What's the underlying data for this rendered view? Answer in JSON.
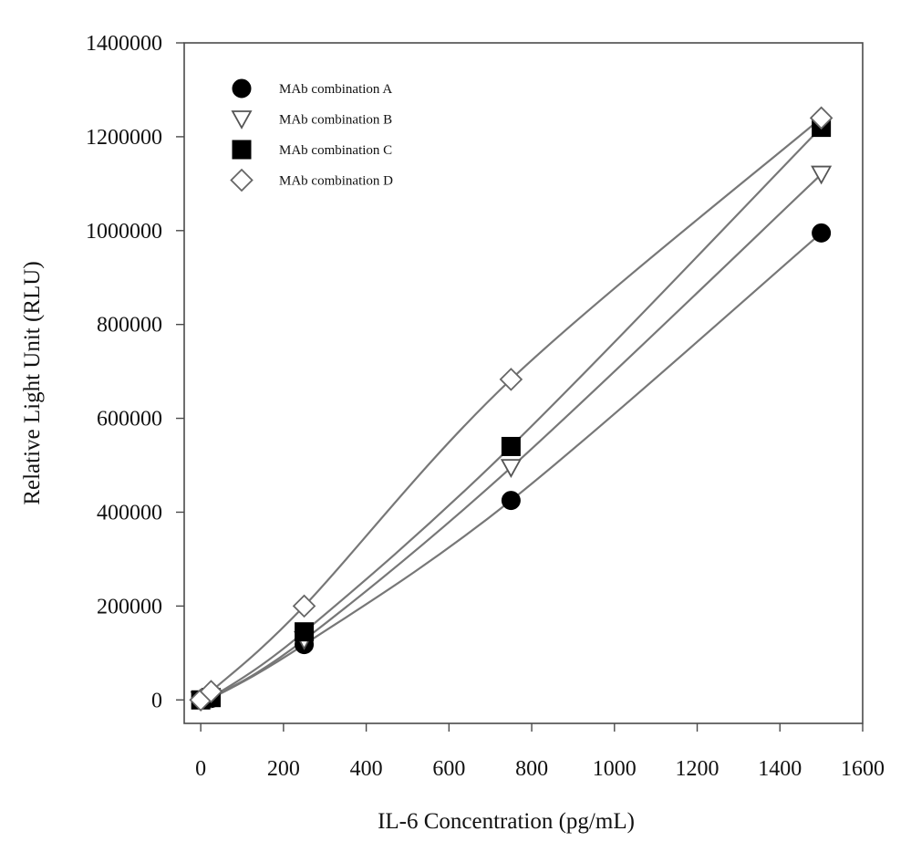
{
  "chart_data": {
    "type": "scatter",
    "xlabel": "IL-6 Concentration (pg/mL)",
    "ylabel": "Relative Light Unit (RLU)",
    "xlim": [
      -40,
      1600
    ],
    "ylim": [
      -50000,
      1400000
    ],
    "xticks": [
      0,
      200,
      400,
      600,
      800,
      1000,
      1200,
      1400,
      1600
    ],
    "yticks": [
      0,
      200000,
      400000,
      600000,
      800000,
      1000000,
      1200000,
      1400000
    ],
    "grid": false,
    "legend_position": "top-left",
    "x": [
      0,
      25,
      250,
      750,
      1500
    ],
    "series": [
      {
        "name": "MAb combination A",
        "marker": "filled-circle",
        "values": [
          0,
          3000,
          118000,
          425000,
          995000
        ]
      },
      {
        "name": "MAb combination B",
        "marker": "open-triangle",
        "values": [
          0,
          4000,
          128000,
          495000,
          1120000
        ]
      },
      {
        "name": "MAb combination C",
        "marker": "filled-square",
        "values": [
          0,
          5000,
          145000,
          540000,
          1220000
        ]
      },
      {
        "name": "MAb combination D",
        "marker": "open-diamond",
        "values": [
          0,
          18000,
          200000,
          683000,
          1240000
        ]
      }
    ]
  }
}
